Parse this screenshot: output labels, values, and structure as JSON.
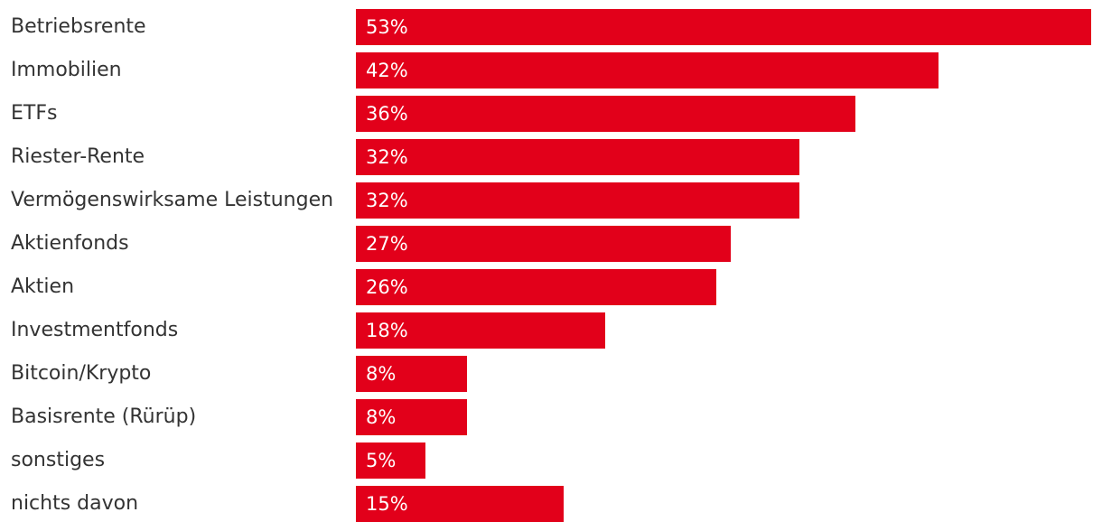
{
  "chart_data": {
    "type": "bar",
    "orientation": "horizontal",
    "title": "",
    "xlabel": "",
    "ylabel": "",
    "xlim": [
      0,
      53
    ],
    "grid": false,
    "bar_color": "#e2001a",
    "categories": [
      "Betriebsrente",
      "Immobilien",
      "ETFs",
      "Riester-Rente",
      "Vermögenswirksame Leistungen",
      "Aktienfonds",
      "Aktien",
      "Investmentfonds",
      "Bitcoin/Krypto",
      "Basisrente (Rürüp)",
      "sonstiges",
      "nichts davon"
    ],
    "values": [
      53,
      42,
      36,
      32,
      32,
      27,
      26,
      18,
      8,
      8,
      5,
      15
    ],
    "value_labels": [
      "53%",
      "42%",
      "36%",
      "32%",
      "32%",
      "27%",
      "26%",
      "18%",
      "8%",
      "8%",
      "5%",
      "15%"
    ]
  }
}
